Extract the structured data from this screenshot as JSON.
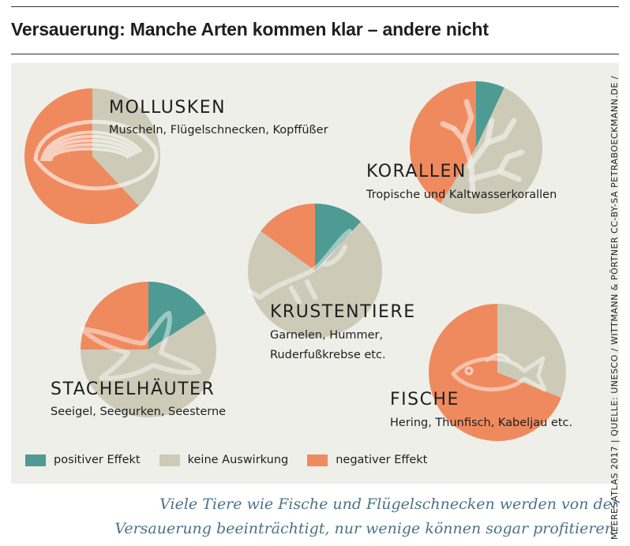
{
  "header": {
    "title": "Versauerung: Manche Arten kommen klar – andere nicht"
  },
  "credit": "MEERESATLAS 2017 | QUELLE: UNESCO / WITTMANN & PÖRTNER   CC-BY-SA PETRABOECKMANN.DE /",
  "caption": {
    "line1": "Viele Tiere wie Fische und Flügelschnecken werden von der",
    "line2": "Versauerung beeinträchtigt, nur wenige können sogar profitieren."
  },
  "chart_data": {
    "type": "pie",
    "legend": {
      "position": "bottom-left",
      "entries": [
        {
          "key": "positive",
          "label": "positiver Effekt",
          "color": "#4d9b93"
        },
        {
          "key": "neutral",
          "label": "keine Auswirkung",
          "color": "#cdcbb8"
        },
        {
          "key": "negative",
          "label": "negativer Effekt",
          "color": "#ef8a5f"
        }
      ]
    },
    "pies": [
      {
        "id": "mollusken",
        "title": "MOLLUSKEN",
        "subtitle": [
          "Muscheln, Flügelschnecken, Kopffüßer"
        ],
        "icon": "shell-icon",
        "values": {
          "positive": 0,
          "neutral": 0.38,
          "negative": 0.62
        }
      },
      {
        "id": "korallen",
        "title": "KORALLEN",
        "subtitle": [
          "Tropische und Kaltwasserkorallen"
        ],
        "icon": "coral-icon",
        "values": {
          "positive": 0.07,
          "neutral": 0.52,
          "negative": 0.41
        }
      },
      {
        "id": "krustentiere",
        "title": "KRUSTENTIERE",
        "subtitle": [
          "Garnelen, Hummer,",
          "Ruderfußkrebse etc."
        ],
        "icon": "shrimp-icon",
        "values": {
          "positive": 0.12,
          "neutral": 0.73,
          "negative": 0.15
        }
      },
      {
        "id": "stachelhaeuter",
        "title": "STACHELHÄUTER",
        "subtitle": [
          "Seeigel, Seegurken, Seesterne"
        ],
        "icon": "starfish-icon",
        "values": {
          "positive": 0.16,
          "neutral": 0.59,
          "negative": 0.25
        }
      },
      {
        "id": "fische",
        "title": "FISCHE",
        "subtitle": [
          "Hering, Thunfisch, Kabeljau etc."
        ],
        "icon": "fish-icon",
        "values": {
          "positive": 0,
          "neutral": 0.31,
          "negative": 0.69
        }
      }
    ]
  }
}
